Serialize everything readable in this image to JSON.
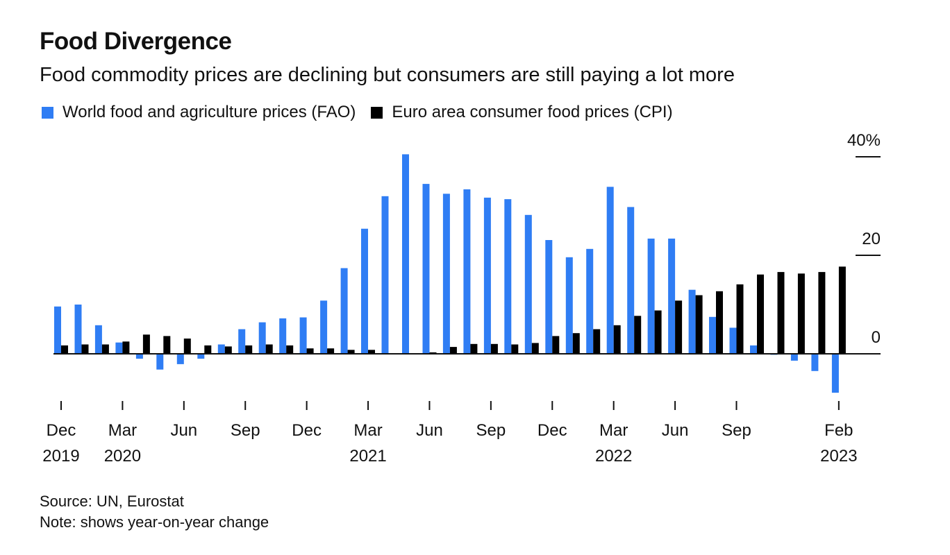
{
  "chart_data": {
    "type": "bar",
    "title": "Food Divergence",
    "subtitle": "Food commodity prices are declining but consumers are still paying a lot more",
    "xlabel": "",
    "ylabel": "",
    "ylim": [
      -10,
      40
    ],
    "y_ticks": [
      {
        "value": 40,
        "label": "40%"
      },
      {
        "value": 20,
        "label": "20"
      },
      {
        "value": 0,
        "label": "0"
      }
    ],
    "y_axis_position": "right",
    "grid": false,
    "legend_position": "top-left",
    "categories": [
      "Dec 2019",
      "Jan 2020",
      "Feb 2020",
      "Mar 2020",
      "Apr 2020",
      "May 2020",
      "Jun 2020",
      "Jul 2020",
      "Aug 2020",
      "Sep 2020",
      "Oct 2020",
      "Nov 2020",
      "Dec 2020",
      "Jan 2021",
      "Feb 2021",
      "Mar 2021",
      "Apr 2021",
      "May 2021",
      "Jun 2021",
      "Jul 2021",
      "Aug 2021",
      "Sep 2021",
      "Oct 2021",
      "Nov 2021",
      "Dec 2021",
      "Jan 2022",
      "Feb 2022",
      "Mar 2022",
      "Apr 2022",
      "May 2022",
      "Jun 2022",
      "Jul 2022",
      "Aug 2022",
      "Sep 2022",
      "Oct 2022",
      "Nov 2022",
      "Dec 2022",
      "Jan 2023",
      "Feb 2023"
    ],
    "x_ticks": [
      {
        "index": 0,
        "line1": "Dec",
        "line2": "2019"
      },
      {
        "index": 3,
        "line1": "Mar",
        "line2": "2020"
      },
      {
        "index": 6,
        "line1": "Jun",
        "line2": ""
      },
      {
        "index": 9,
        "line1": "Sep",
        "line2": ""
      },
      {
        "index": 12,
        "line1": "Dec",
        "line2": ""
      },
      {
        "index": 15,
        "line1": "Mar",
        "line2": "2021"
      },
      {
        "index": 18,
        "line1": "Jun",
        "line2": ""
      },
      {
        "index": 21,
        "line1": "Sep",
        "line2": ""
      },
      {
        "index": 24,
        "line1": "Dec",
        "line2": ""
      },
      {
        "index": 27,
        "line1": "Mar",
        "line2": "2022"
      },
      {
        "index": 30,
        "line1": "Jun",
        "line2": ""
      },
      {
        "index": 33,
        "line1": "Sep",
        "line2": ""
      },
      {
        "index": 38,
        "line1": "Feb",
        "line2": "2023"
      }
    ],
    "series": [
      {
        "name": "World food and agriculture prices (FAO)",
        "color": "#2f7df4",
        "values": [
          9.6,
          10.0,
          5.8,
          2.3,
          -1.0,
          -3.2,
          -2.1,
          -1.0,
          1.9,
          5.0,
          6.4,
          7.2,
          7.4,
          10.8,
          17.4,
          25.4,
          32.0,
          40.5,
          34.5,
          32.5,
          33.4,
          31.7,
          31.4,
          28.2,
          23.1,
          19.6,
          21.3,
          33.9,
          29.8,
          23.4,
          23.4,
          13.0,
          7.5,
          5.3,
          1.7,
          -0.2,
          -1.4,
          -3.5,
          -7.9
        ]
      },
      {
        "name": "Euro area consumer food prices (CPI)",
        "color": "#000000",
        "values": [
          1.7,
          1.9,
          1.9,
          2.5,
          3.9,
          3.6,
          3.1,
          1.7,
          1.5,
          1.7,
          1.9,
          1.7,
          1.1,
          1.1,
          0.8,
          0.8,
          0.0,
          0.0,
          0.3,
          1.4,
          2.0,
          2.0,
          1.9,
          2.2,
          3.6,
          4.2,
          5.0,
          5.8,
          7.7,
          8.8,
          10.8,
          11.9,
          12.7,
          14.1,
          16.1,
          16.6,
          16.3,
          16.6,
          17.7
        ]
      }
    ]
  },
  "legend": {
    "items": [
      {
        "label": "World food and agriculture prices (FAO)",
        "color": "#2f7df4"
      },
      {
        "label": "Euro area consumer food prices (CPI)",
        "color": "#000000"
      }
    ]
  },
  "footer": {
    "source": "Source: UN, Eurostat",
    "note": "Note: shows year-on-year change"
  }
}
